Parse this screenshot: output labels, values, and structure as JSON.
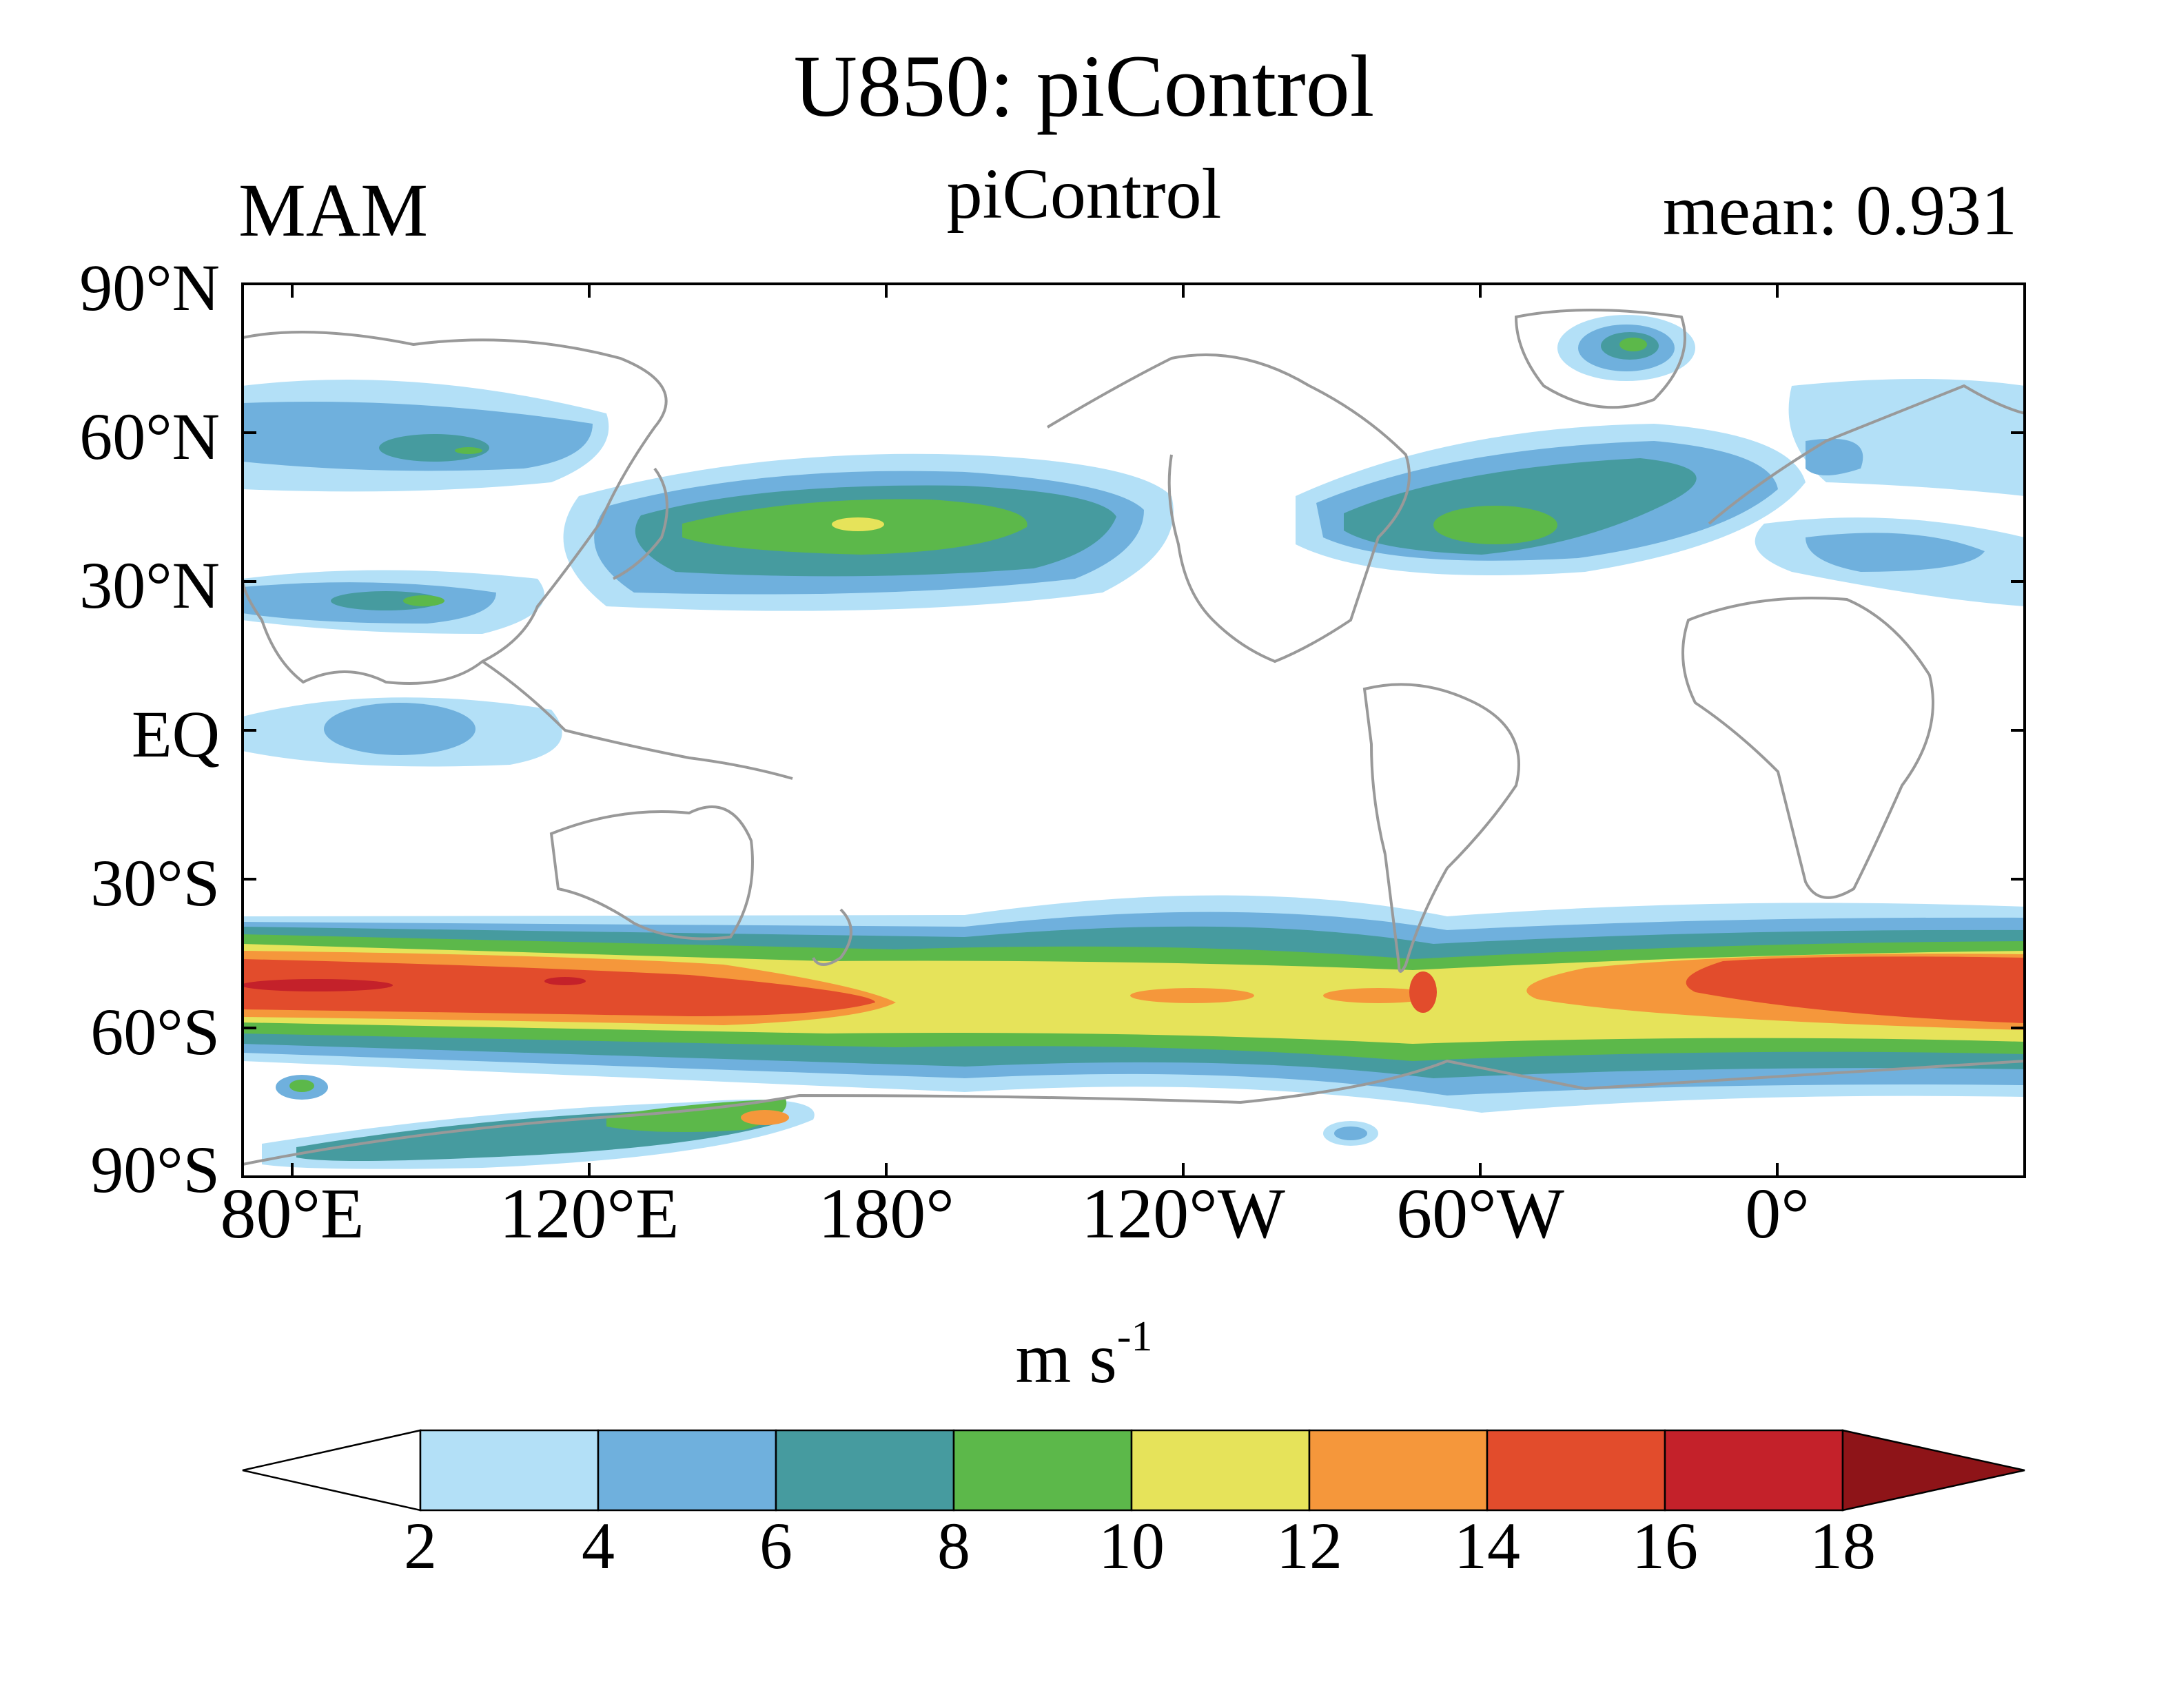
{
  "title": "U850: piControl",
  "subtitle": "piControl",
  "left_label": "MAM",
  "right_label": "mean: 0.931",
  "y_axis": {
    "ticks": [
      "90°N",
      "60°N",
      "30°N",
      "EQ",
      "30°S",
      "60°S",
      "90°S"
    ]
  },
  "x_axis": {
    "ticks": [
      "80°E",
      "120°E",
      "180°",
      "120°W",
      "60°W",
      "0°"
    ]
  },
  "colorbar": {
    "units_main": "m s",
    "units_exp": "-1",
    "levels": [
      "2",
      "4",
      "6",
      "8",
      "10",
      "12",
      "14",
      "16",
      "18"
    ],
    "colors": [
      "#ffffff",
      "#b3e0f7",
      "#6fb0dd",
      "#469b9f",
      "#5cb84a",
      "#e6e35a",
      "#f5973b",
      "#e24c2c",
      "#c4212a",
      "#8e1418"
    ]
  },
  "coastline_color": "#999999"
}
